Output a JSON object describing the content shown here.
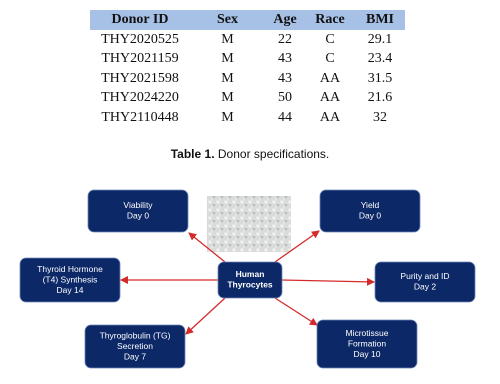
{
  "table": {
    "columns": [
      "Donor ID",
      "Sex",
      "Age",
      "Race",
      "BMI"
    ],
    "rows": [
      [
        "THY2020525",
        "M",
        22,
        "C",
        29.1
      ],
      [
        "THY2021159",
        "M",
        43,
        "C",
        23.4
      ],
      [
        "THY2021598",
        "M",
        43,
        "AA",
        31.5
      ],
      [
        "THY2024220",
        "M",
        50,
        "AA",
        21.6
      ],
      [
        "THY2110448",
        "M",
        44,
        "AA",
        32
      ]
    ]
  },
  "caption": {
    "label": "Table 1.",
    "text": "Donor specifications."
  },
  "diagram": {
    "center": {
      "lines": [
        "Human",
        "Thyrocytes"
      ]
    },
    "nodes": [
      {
        "lines": [
          "Viability",
          "Day 0"
        ]
      },
      {
        "lines": [
          "Yield",
          "Day 0"
        ]
      },
      {
        "lines": [
          "Thyroid Hormone",
          "(T4) Synthesis",
          "Day 14"
        ]
      },
      {
        "lines": [
          "Purity and ID",
          "Day 2"
        ]
      },
      {
        "lines": [
          "Thyroglobulin (TG)",
          "Secretion",
          "Day 7"
        ]
      },
      {
        "lines": [
          "Microtissue",
          "Formation",
          "Day 10"
        ]
      }
    ]
  }
}
